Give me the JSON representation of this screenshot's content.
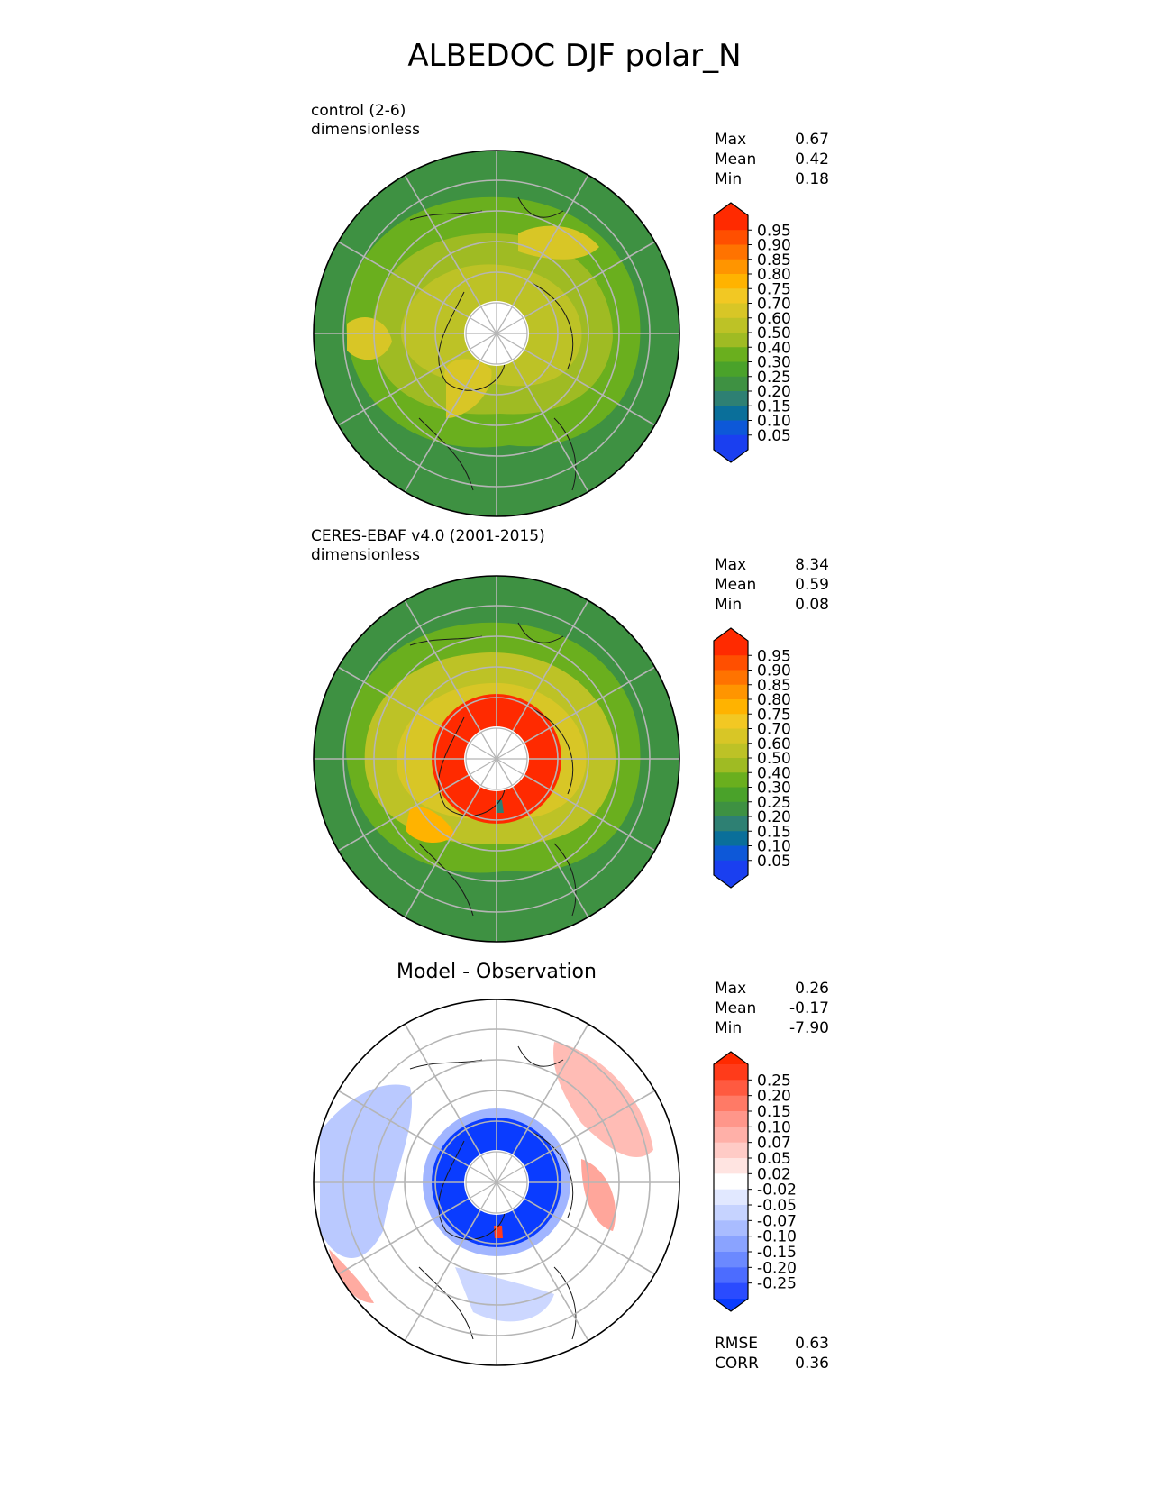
{
  "title": "ALBEDOC DJF polar_N",
  "panels": [
    {
      "label1": "control (2-6)",
      "label2": "dimensionless",
      "stats": {
        "max_label": "Max",
        "max": "0.67",
        "mean_label": "Mean",
        "mean": "0.42",
        "min_label": "Min",
        "min": "0.18"
      }
    },
    {
      "label1": "CERES-EBAF v4.0 (2001-2015)",
      "label2": "dimensionless",
      "stats": {
        "max_label": "Max",
        "max": "8.34",
        "mean_label": "Mean",
        "mean": "0.59",
        "min_label": "Min",
        "min": "0.08"
      }
    },
    {
      "title": "Model - Observation",
      "stats": {
        "max_label": "Max",
        "max": "0.26",
        "mean_label": "Mean",
        "mean": "-0.17",
        "min_label": "Min",
        "min": "-7.90"
      },
      "metrics": {
        "rmse_label": "RMSE",
        "rmse": "0.63",
        "corr_label": "CORR",
        "corr": "0.36"
      }
    }
  ],
  "colorbars": {
    "field": {
      "ticks": [
        "0.95",
        "0.90",
        "0.85",
        "0.80",
        "0.75",
        "0.70",
        "0.60",
        "0.50",
        "0.40",
        "0.30",
        "0.25",
        "0.20",
        "0.15",
        "0.10",
        "0.05"
      ],
      "colors": [
        "#ff2a00",
        "#ff4f00",
        "#ff7300",
        "#ff9500",
        "#ffb300",
        "#f2c823",
        "#d8c626",
        "#bdc226",
        "#9fbb23",
        "#6aaf1e",
        "#4aa22a",
        "#3e9142",
        "#2e8073",
        "#0a6f9a",
        "#0d58d8",
        "#1a3ff0"
      ],
      "max_color": "#ff2a00",
      "min_color": "#1a3ff0"
    },
    "diff": {
      "ticks": [
        "0.25",
        "0.20",
        "0.15",
        "0.10",
        "0.07",
        "0.05",
        "0.02",
        "-0.02",
        "-0.05",
        "-0.07",
        "-0.10",
        "-0.15",
        "-0.20",
        "-0.25"
      ],
      "colors": [
        "#ff3b1a",
        "#ff5a40",
        "#ff7a66",
        "#ff968a",
        "#ffb0a8",
        "#ffcbc6",
        "#ffe4e1",
        "#ffffff",
        "#e1e8ff",
        "#c6d3ff",
        "#a9bcff",
        "#8aa3ff",
        "#6b89ff",
        "#4c6cff",
        "#2a4bff"
      ],
      "max_color": "#ff2a00",
      "min_color": "#0a3cff"
    }
  }
}
